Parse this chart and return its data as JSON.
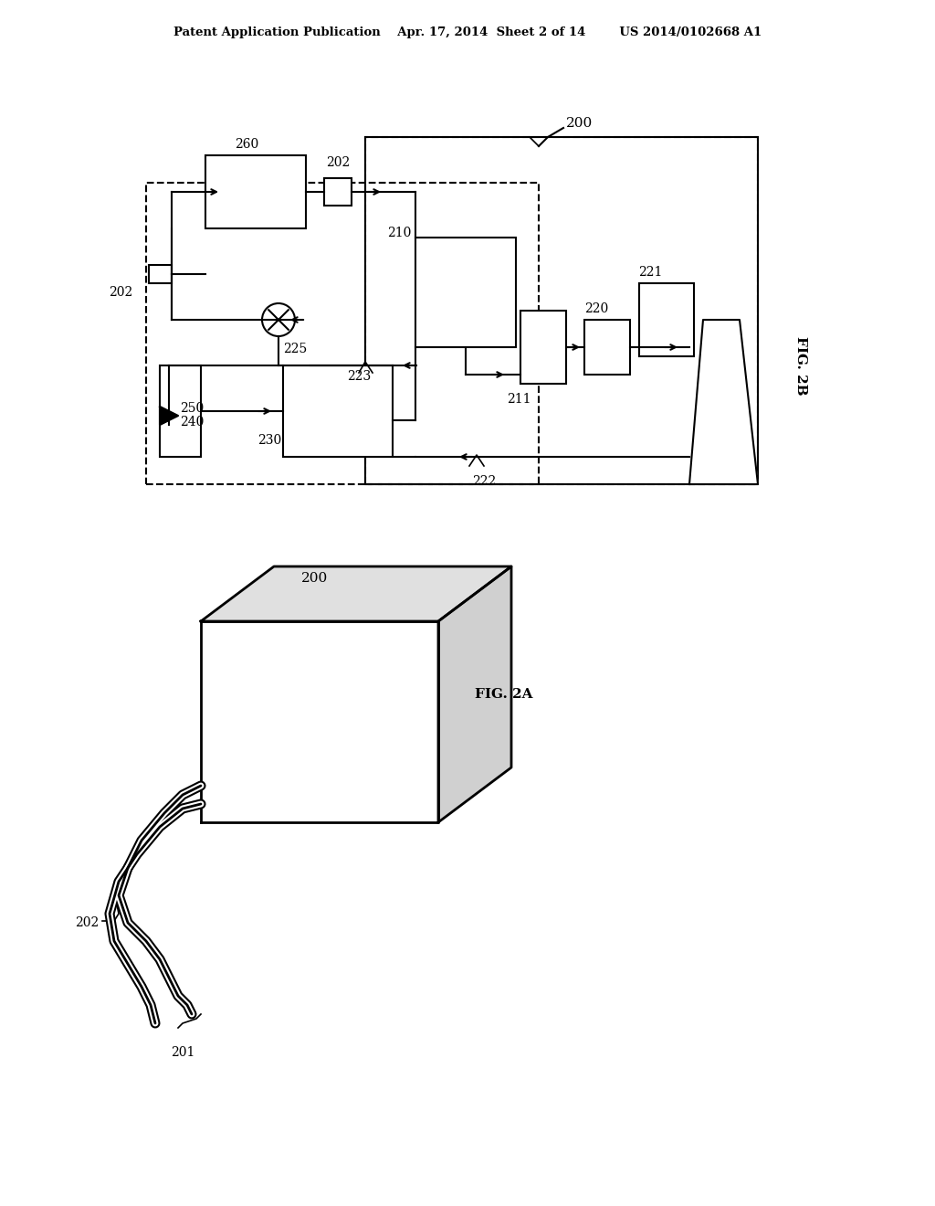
{
  "bg_color": "#ffffff",
  "line_color": "#000000",
  "header_text": "Patent Application Publication    Apr. 17, 2014  Sheet 2 of 14        US 2014/0102668 A1",
  "fig2b_label": "FIG. 2B",
  "fig2a_label": "FIG. 2A",
  "label_200_top": "200",
  "label_202_left": "202",
  "label_260": "260",
  "label_202_top": "202",
  "label_210": "210",
  "label_211": "211",
  "label_220": "220",
  "label_221": "221",
  "label_223": "223",
  "label_225": "225",
  "label_240": "240",
  "label_250": "250",
  "label_230": "230",
  "label_222": "222"
}
